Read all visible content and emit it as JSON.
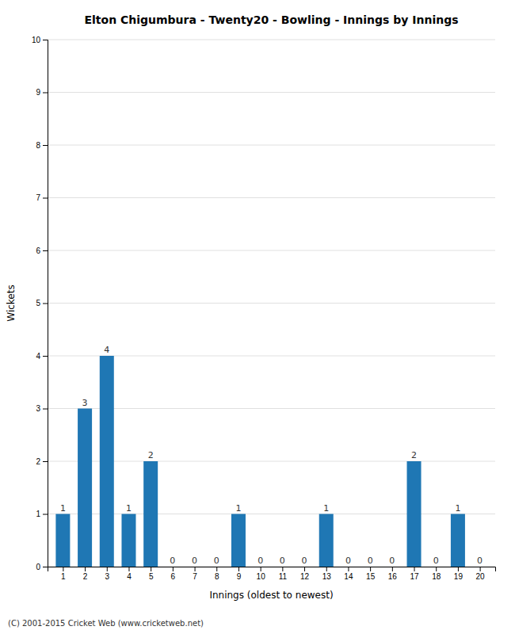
{
  "chart_data": {
    "type": "bar",
    "title": "Elton Chigumbura - Twenty20 - Bowling - Innings by Innings",
    "xlabel": "Innings (oldest to newest)",
    "ylabel": "Wickets",
    "x": [
      1,
      2,
      3,
      4,
      5,
      6,
      7,
      8,
      9,
      10,
      11,
      12,
      13,
      14,
      15,
      16,
      17,
      18,
      19,
      20
    ],
    "values": [
      1,
      3,
      4,
      1,
      2,
      0,
      0,
      0,
      1,
      0,
      0,
      0,
      1,
      0,
      0,
      0,
      2,
      0,
      1,
      0
    ],
    "xlim": [
      0.3,
      20.7
    ],
    "xticks": [
      1,
      2,
      3,
      4,
      5,
      6,
      7,
      8,
      9,
      10,
      11,
      12,
      13,
      14,
      15,
      16,
      17,
      18,
      19,
      20
    ],
    "ylim": [
      0,
      10
    ],
    "yticks": [
      0,
      1,
      2,
      3,
      4,
      5,
      6,
      7,
      8,
      9,
      10
    ],
    "grid": true,
    "data_labels": true,
    "footer": "(C) 2001-2015 Cricket Web (www.cricketweb.net)"
  }
}
